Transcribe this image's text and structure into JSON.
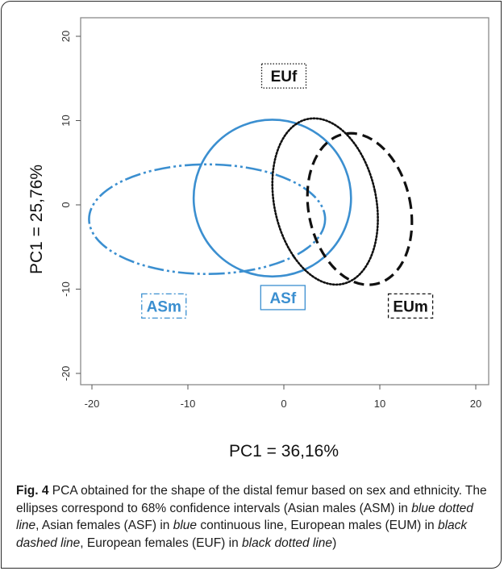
{
  "chart_data": {
    "type": "scatter",
    "subtype": "confidence-ellipses",
    "title": "",
    "xlabel": "PC1 = 36,16%",
    "ylabel": "PC1 = 25,76%",
    "xlim": [
      -21,
      21
    ],
    "ylim": [
      -21,
      21
    ],
    "xticks": [
      "-20",
      "-10",
      "0",
      "10",
      "20"
    ],
    "yticks": [
      "20",
      "10",
      "0",
      "-10",
      "-20"
    ],
    "grid": false,
    "series": [
      {
        "name": "ASm",
        "color": "#3b8fd0",
        "line": "dash-dot-dot",
        "center": [
          -8,
          -1.7
        ],
        "rx": 12.3,
        "ry": 6.5,
        "rotation_deg": 0
      },
      {
        "name": "ASf",
        "color": "#3b8fd0",
        "line": "solid",
        "center": [
          -1.2,
          0.8
        ],
        "rx": 8.2,
        "ry": 9.3,
        "rotation_deg": 0
      },
      {
        "name": "EUf",
        "color": "#111111",
        "line": "dotted",
        "center": [
          4.3,
          0.4
        ],
        "rx": 5.3,
        "ry": 10.0,
        "rotation_deg": -12
      },
      {
        "name": "EUm",
        "color": "#111111",
        "line": "dashed",
        "center": [
          7.9,
          -0.5
        ],
        "rx": 5.3,
        "ry": 9.1,
        "rotation_deg": -12
      }
    ],
    "labels": [
      {
        "text": "EUf",
        "at": [
          0,
          15.3
        ],
        "color": "#111111",
        "border": "dotted"
      },
      {
        "text": "ASm",
        "at": [
          -12.5,
          -12
        ],
        "color": "#3b8fd0",
        "border": "dash-dot"
      },
      {
        "text": "ASf",
        "at": [
          -0.1,
          -11
        ],
        "color": "#3b8fd0",
        "border": "solid"
      },
      {
        "text": "EUm",
        "at": [
          13.2,
          -12
        ],
        "color": "#111111",
        "border": "dashed"
      }
    ]
  },
  "caption": {
    "fig_label": "Fig. 4",
    "parts": [
      {
        "text": " PCA obtained for the shape of the distal femur based on sex and ethnicity. The ellipses correspond to 68% confidence intervals (Asian males (ASM) in ",
        "italic": false
      },
      {
        "text": "blue dotted line",
        "italic": true
      },
      {
        "text": ", Asian females (ASF) in ",
        "italic": false
      },
      {
        "text": "blue",
        "italic": true
      },
      {
        "text": " continuous line, European males (EUM) in ",
        "italic": false
      },
      {
        "text": "black dashed line",
        "italic": true
      },
      {
        "text": ", European females (EUF) in ",
        "italic": false
      },
      {
        "text": "black dotted line",
        "italic": true
      },
      {
        "text": ")",
        "italic": false
      }
    ]
  }
}
